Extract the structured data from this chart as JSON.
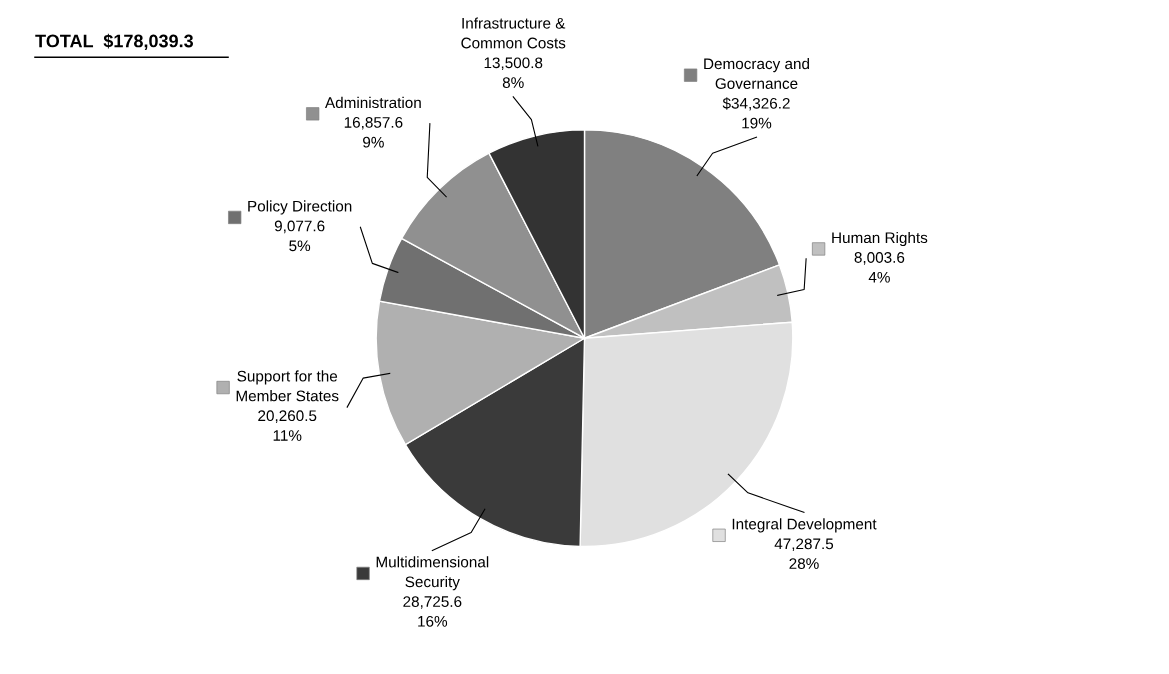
{
  "chart_data": {
    "type": "pie",
    "title": "TOTAL  $178,039.3",
    "categories": [
      "Democracy and\nGovernance",
      "Human Rights",
      "Integral Development",
      "Multidimensional\nSecurity",
      "Support for the\nMember States",
      "Policy Direction",
      "Administration",
      "Infrastructure &\nCommon Costs"
    ],
    "values": [
      34326.2,
      8003.6,
      47287.5,
      28725.6,
      20260.5,
      9077.6,
      16857.6,
      13500.8
    ],
    "value_labels": [
      "$34,326.2\n19%",
      "8,003.6\n4%",
      "47,287.5\n28%",
      "28,725.6\n16%",
      "20,260.5\n11%",
      "9,077.6\n5%",
      "16,857.6\n9%",
      "13,500.8\n8%"
    ],
    "colors": [
      "#808080",
      "#c0c0c0",
      "#e0e0e0",
      "#3a3a3a",
      "#b0b0b0",
      "#707070",
      "#909090",
      "#333333"
    ],
    "legend": "top left"
  }
}
